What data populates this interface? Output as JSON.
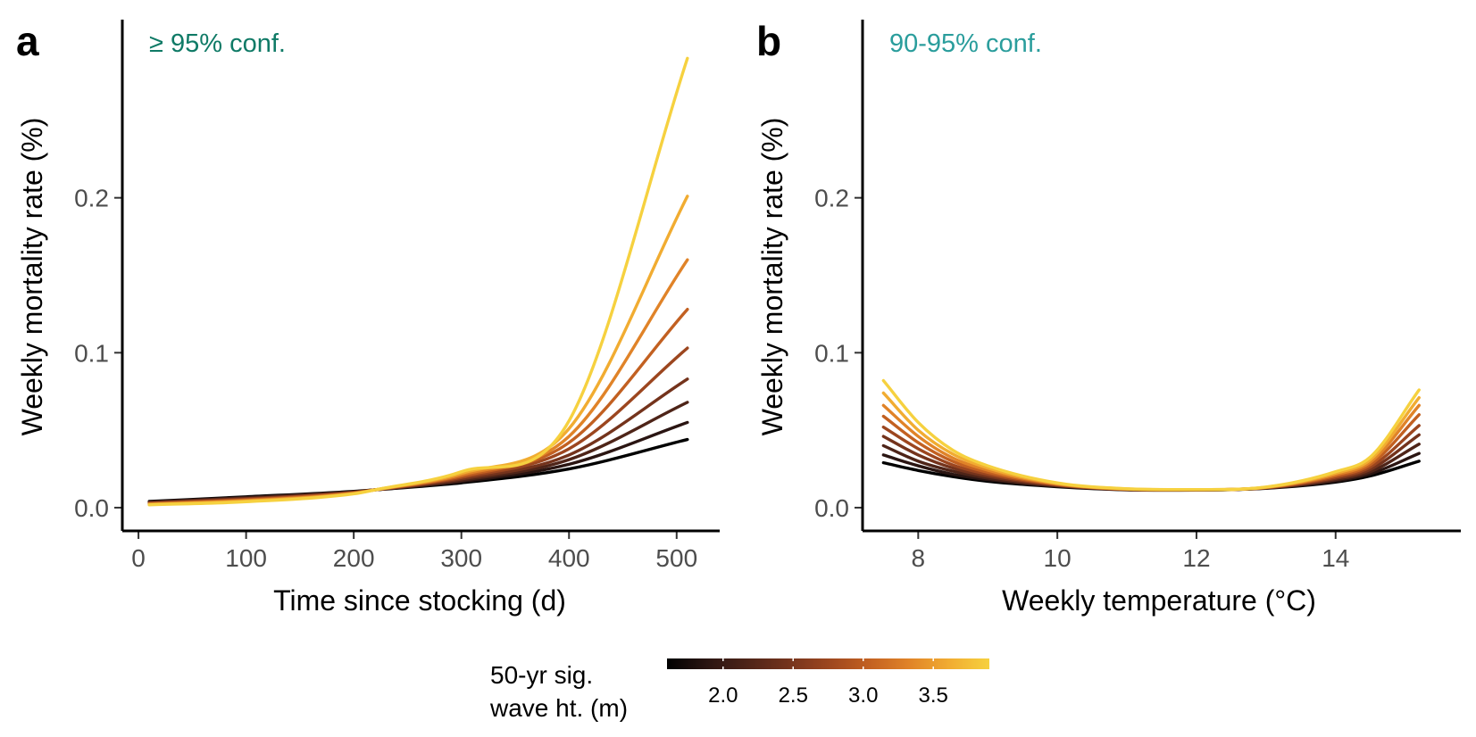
{
  "colorbar": {
    "title_line1": "50-yr sig.",
    "title_line2": "wave ht. (m)",
    "min": 1.6,
    "max": 3.9,
    "ticks": [
      "2.0",
      "2.5",
      "3.0",
      "3.5"
    ],
    "tick_values": [
      2.0,
      2.5,
      3.0,
      3.5
    ],
    "colors": [
      "#000000",
      "#2a1512",
      "#4e2418",
      "#74331c",
      "#9c461f",
      "#c26021",
      "#e08328",
      "#f1ac31",
      "#f6d13f"
    ]
  },
  "chart_data": [
    {
      "type": "line",
      "panel_label": "a",
      "annotation": "≥ 95% conf.",
      "annotation_color": "#0f7a66",
      "xlabel": "Time since stocking (d)",
      "ylabel": "Weekly mortality rate (%)",
      "xlim": [
        -15,
        540
      ],
      "ylim": [
        -0.015,
        0.315
      ],
      "xticks": [
        0,
        100,
        200,
        300,
        400,
        500
      ],
      "xtick_labels": [
        "0",
        "100",
        "200",
        "300",
        "400",
        "500"
      ],
      "yticks": [
        0.0,
        0.1,
        0.2
      ],
      "ytick_labels": [
        "0.0",
        "0.1",
        "0.2"
      ],
      "grid": false,
      "series": [
        {
          "color": "#000000",
          "x": [
            10,
            100,
            200,
            220,
            300,
            400,
            510
          ],
          "y": [
            0.004,
            0.007,
            0.0105,
            0.0115,
            0.016,
            0.025,
            0.044
          ]
        },
        {
          "color": "#2a1512",
          "x": [
            10,
            100,
            200,
            220,
            300,
            400,
            510
          ],
          "y": [
            0.0037,
            0.0066,
            0.0103,
            0.0115,
            0.0168,
            0.028,
            0.055
          ]
        },
        {
          "color": "#4e2418",
          "x": [
            10,
            100,
            200,
            220,
            300,
            400,
            510
          ],
          "y": [
            0.0034,
            0.0062,
            0.0101,
            0.0115,
            0.0176,
            0.031,
            0.068
          ]
        },
        {
          "color": "#74331c",
          "x": [
            10,
            100,
            200,
            220,
            300,
            400,
            510
          ],
          "y": [
            0.0031,
            0.0058,
            0.0099,
            0.0115,
            0.0185,
            0.034,
            0.083
          ]
        },
        {
          "color": "#9c461f",
          "x": [
            10,
            100,
            200,
            220,
            300,
            400,
            510
          ],
          "y": [
            0.0028,
            0.0054,
            0.0097,
            0.0115,
            0.0194,
            0.038,
            0.103
          ]
        },
        {
          "color": "#c26021",
          "x": [
            10,
            100,
            200,
            220,
            300,
            400,
            510
          ],
          "y": [
            0.0025,
            0.005,
            0.0095,
            0.0115,
            0.0203,
            0.042,
            0.128
          ]
        },
        {
          "color": "#e08328",
          "x": [
            10,
            100,
            200,
            220,
            300,
            400,
            510
          ],
          "y": [
            0.0022,
            0.0046,
            0.0093,
            0.0115,
            0.0212,
            0.046,
            0.16
          ]
        },
        {
          "color": "#f1ac31",
          "x": [
            10,
            100,
            200,
            220,
            300,
            400,
            510
          ],
          "y": [
            0.002,
            0.0042,
            0.0091,
            0.0115,
            0.0222,
            0.051,
            0.201
          ]
        },
        {
          "color": "#f6d13f",
          "x": [
            10,
            100,
            200,
            220,
            300,
            400,
            510
          ],
          "y": [
            0.0018,
            0.0038,
            0.0089,
            0.0115,
            0.0232,
            0.056,
            0.29
          ]
        }
      ]
    },
    {
      "type": "line",
      "panel_label": "b",
      "annotation": "90-95% conf.",
      "annotation_color": "#2a9d9c",
      "xlabel": "Weekly temperature (°C)",
      "ylabel": "Weekly mortality rate (%)",
      "xlim": [
        7.2,
        15.8
      ],
      "ylim": [
        -0.015,
        0.315
      ],
      "xticks": [
        8,
        10,
        12,
        14
      ],
      "xtick_labels": [
        "8",
        "10",
        "12",
        "14"
      ],
      "yticks": [
        0.0,
        0.1,
        0.2
      ],
      "ytick_labels": [
        "0.0",
        "0.1",
        "0.2"
      ],
      "grid": false,
      "series": [
        {
          "color": "#000000",
          "x": [
            7.5,
            8,
            8.5,
            9,
            10,
            11,
            12,
            13,
            14,
            14.5,
            15.2
          ],
          "y": [
            0.029,
            0.024,
            0.02,
            0.017,
            0.0135,
            0.0115,
            0.0113,
            0.0125,
            0.0165,
            0.0205,
            0.03
          ]
        },
        {
          "color": "#2a1512",
          "x": [
            7.5,
            8,
            8.5,
            9,
            10,
            11,
            12,
            13,
            14,
            14.5,
            15.2
          ],
          "y": [
            0.034,
            0.027,
            0.0215,
            0.018,
            0.0138,
            0.0116,
            0.0114,
            0.0126,
            0.0172,
            0.0218,
            0.035
          ]
        },
        {
          "color": "#4e2418",
          "x": [
            7.5,
            8,
            8.5,
            9,
            10,
            11,
            12,
            13,
            14,
            14.5,
            15.2
          ],
          "y": [
            0.04,
            0.03,
            0.0235,
            0.019,
            0.0141,
            0.0117,
            0.0114,
            0.0127,
            0.018,
            0.0232,
            0.041
          ]
        },
        {
          "color": "#74331c",
          "x": [
            7.5,
            8,
            8.5,
            9,
            10,
            11,
            12,
            13,
            14,
            14.5,
            15.2
          ],
          "y": [
            0.046,
            0.034,
            0.0255,
            0.0202,
            0.0144,
            0.0117,
            0.0115,
            0.0128,
            0.0188,
            0.0247,
            0.047
          ]
        },
        {
          "color": "#9c461f",
          "x": [
            7.5,
            8,
            8.5,
            9,
            10,
            11,
            12,
            13,
            14,
            14.5,
            15.2
          ],
          "y": [
            0.052,
            0.038,
            0.0275,
            0.0215,
            0.0147,
            0.0118,
            0.0115,
            0.0129,
            0.0196,
            0.0262,
            0.053
          ]
        },
        {
          "color": "#c26021",
          "x": [
            7.5,
            8,
            8.5,
            9,
            10,
            11,
            12,
            13,
            14,
            14.5,
            15.2
          ],
          "y": [
            0.059,
            0.042,
            0.0298,
            0.0228,
            0.015,
            0.0119,
            0.0116,
            0.013,
            0.0205,
            0.0278,
            0.06
          ]
        },
        {
          "color": "#e08328",
          "x": [
            7.5,
            8,
            8.5,
            9,
            10,
            11,
            12,
            13,
            14,
            14.5,
            15.2
          ],
          "y": [
            0.066,
            0.046,
            0.032,
            0.0242,
            0.0153,
            0.012,
            0.0116,
            0.0131,
            0.0214,
            0.0294,
            0.066
          ]
        },
        {
          "color": "#f1ac31",
          "x": [
            7.5,
            8,
            8.5,
            9,
            10,
            11,
            12,
            13,
            14,
            14.5,
            15.2
          ],
          "y": [
            0.074,
            0.05,
            0.0345,
            0.0256,
            0.0156,
            0.0121,
            0.0117,
            0.0132,
            0.0223,
            0.031,
            0.071
          ]
        },
        {
          "color": "#f6d13f",
          "x": [
            7.5,
            8,
            8.5,
            9,
            10,
            11,
            12,
            13,
            14,
            14.5,
            15.2
          ],
          "y": [
            0.082,
            0.055,
            0.037,
            0.027,
            0.016,
            0.0122,
            0.0117,
            0.0133,
            0.0232,
            0.0327,
            0.076
          ]
        }
      ]
    }
  ]
}
